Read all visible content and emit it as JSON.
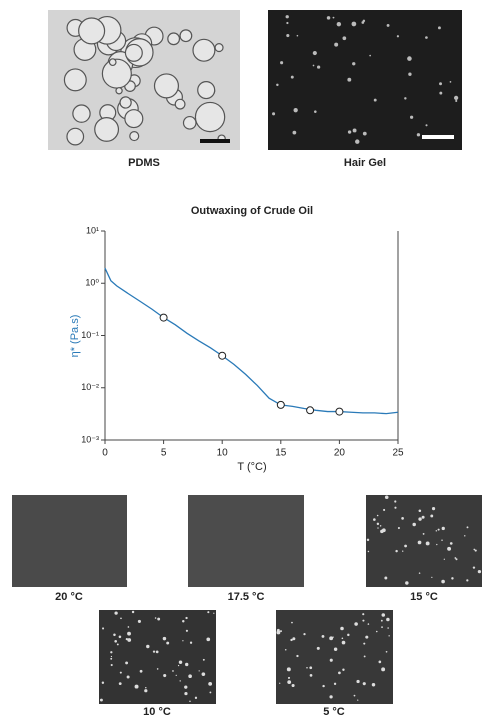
{
  "images": [
    {
      "label": "PDMS"
    },
    {
      "label": "Hair Gel"
    }
  ],
  "chart_data": {
    "type": "line",
    "title": "Outwaxing of Crude Oil",
    "xlabel": "T (°C)",
    "ylabel": "η* (Pa.s)",
    "log_y": true,
    "color": "#2a7ab8",
    "xlim": [
      0,
      25
    ],
    "xticks": [
      0,
      5,
      10,
      15,
      20,
      25
    ],
    "ylim": [
      0.001,
      10
    ],
    "yticks": [
      {
        "value": 10,
        "label": "10¹"
      },
      {
        "value": 1,
        "label": "10⁰"
      },
      {
        "value": 0.1,
        "label": "10⁻¹"
      },
      {
        "value": 0.01,
        "label": "10⁻²"
      },
      {
        "value": 0.001,
        "label": "10⁻³"
      }
    ],
    "x": [
      0,
      0.5,
      1,
      2,
      3,
      4,
      5,
      6,
      7,
      8,
      9,
      10,
      11,
      12,
      13,
      14,
      15,
      16,
      17,
      18,
      19,
      20,
      21,
      22,
      23,
      24,
      25
    ],
    "values": [
      1.95,
      1.12,
      0.89,
      0.63,
      0.45,
      0.32,
      0.22,
      0.16,
      0.11,
      0.079,
      0.058,
      0.041,
      0.028,
      0.018,
      0.011,
      0.0063,
      0.0047,
      0.0044,
      0.004,
      0.0037,
      0.0035,
      0.0035,
      0.0034,
      0.0033,
      0.0033,
      0.0032,
      0.0034
    ],
    "markers": {
      "x": [
        5,
        10,
        15,
        17.5,
        20
      ],
      "values": [
        0.22,
        0.041,
        0.0047,
        0.0037,
        0.0035
      ]
    }
  },
  "micrographs": [
    {
      "label": "20 °C"
    },
    {
      "label": "17.5 °C"
    },
    {
      "label": "15 °C"
    },
    {
      "label": "10 °C"
    },
    {
      "label": "5 °C"
    }
  ]
}
